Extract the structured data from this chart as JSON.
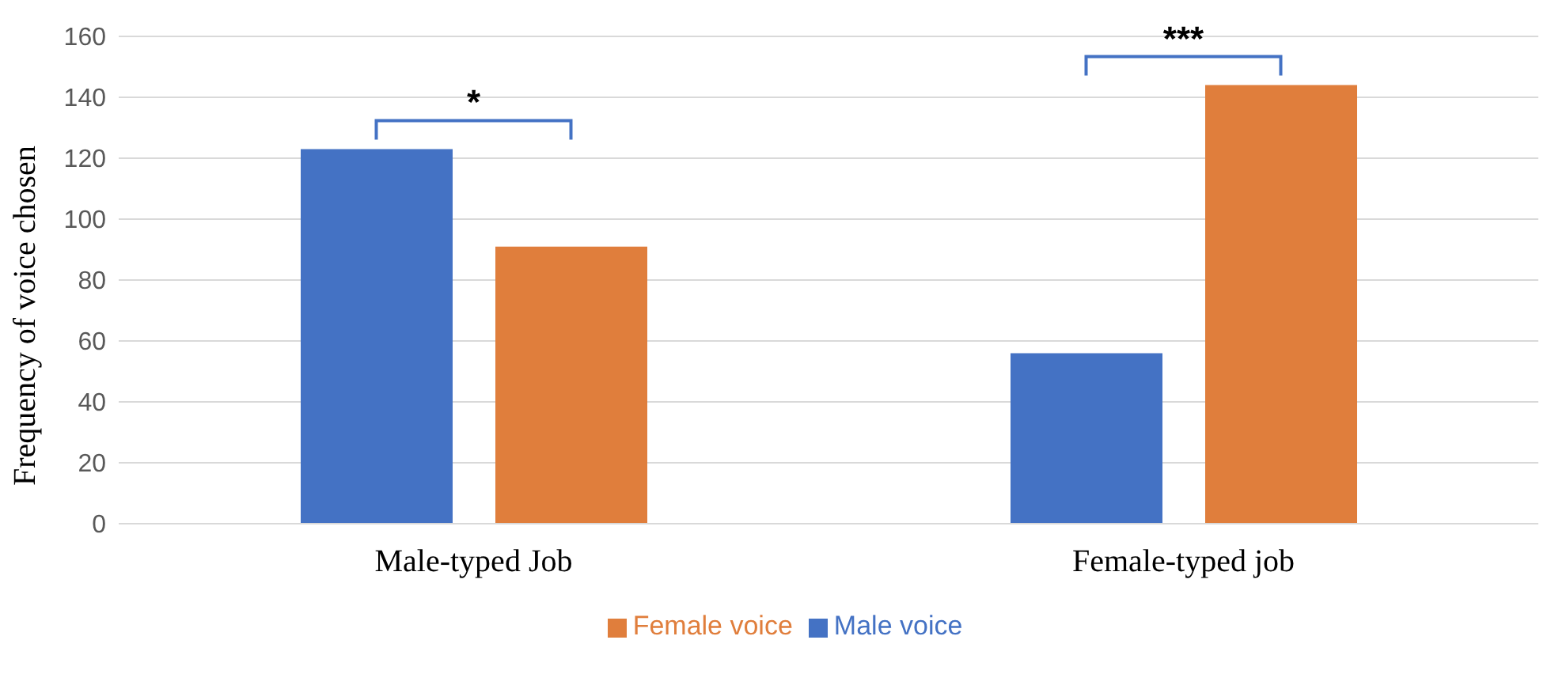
{
  "chart_data": {
    "type": "bar",
    "ylabel": "Frequency of voice chosen",
    "categories": [
      "Male-typed Job",
      "Female-typed job"
    ],
    "series": [
      {
        "name": "Male voice",
        "color": "#4472c4",
        "values": [
          123,
          56
        ]
      },
      {
        "name": "Female voice",
        "color": "#e07e3c",
        "values": [
          91,
          144
        ]
      }
    ],
    "ylim": [
      0,
      160
    ],
    "yticks": [
      0,
      20,
      40,
      60,
      80,
      100,
      120,
      140,
      160
    ],
    "grid": "y",
    "legend": "bottom",
    "annotations": [
      "*",
      "***"
    ]
  }
}
